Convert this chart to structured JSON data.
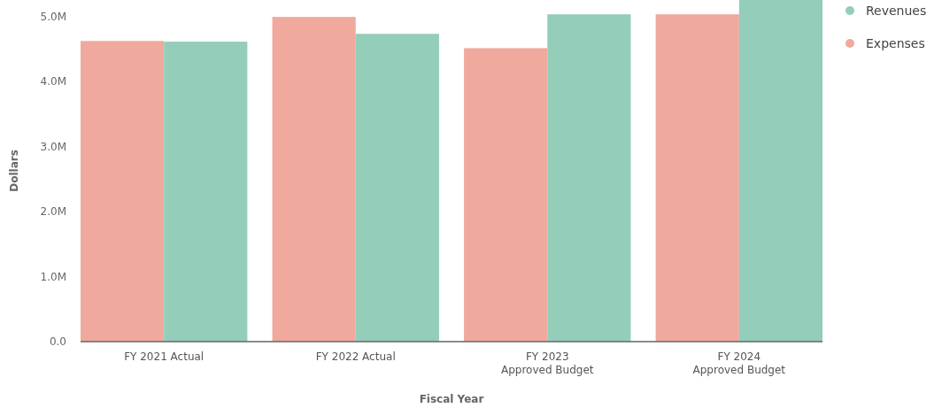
{
  "chart_data": {
    "type": "bar",
    "xlabel": "Fiscal Year",
    "ylabel": "Dollars",
    "categories": [
      "FY 2021 Actual",
      "FY 2022 Actual",
      "FY 2023\nApproved Budget",
      "FY 2024\nApproved Budget"
    ],
    "series": [
      {
        "name": "Expenses",
        "color": "#efaa9d",
        "values": [
          4620000,
          4990000,
          4510000,
          5030000
        ]
      },
      {
        "name": "Revenues",
        "color": "#94cdb9",
        "values": [
          4610000,
          4730000,
          5030000,
          5250000
        ]
      }
    ],
    "ylim": [
      0,
      5250000
    ],
    "yticks": [
      {
        "value": 0,
        "label": "0.0"
      },
      {
        "value": 1000000,
        "label": "1.0M"
      },
      {
        "value": 2000000,
        "label": "2.0M"
      },
      {
        "value": 3000000,
        "label": "3.0M"
      },
      {
        "value": 4000000,
        "label": "4.0M"
      },
      {
        "value": 5000000,
        "label": "5.0M"
      }
    ],
    "grid": false,
    "legend": "top right"
  }
}
